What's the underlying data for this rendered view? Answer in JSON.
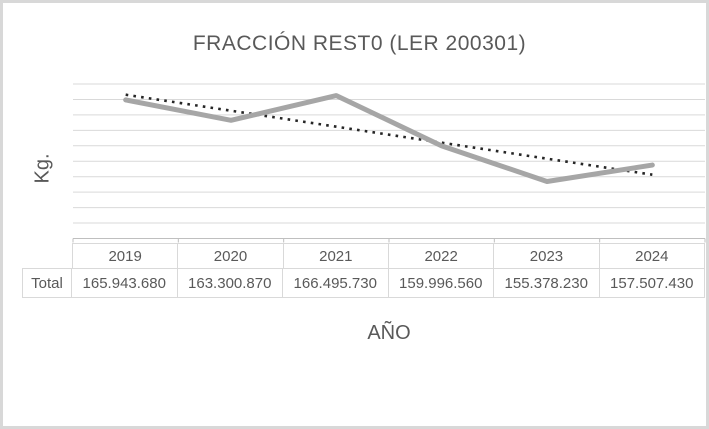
{
  "chart_data": {
    "type": "line",
    "title": "FRACCIÓN REST0 (LER 200301)",
    "xlabel": "AÑO",
    "ylabel": "Kg.",
    "categories": [
      "2019",
      "2020",
      "2021",
      "2022",
      "2023",
      "2024"
    ],
    "series": [
      {
        "name": "Total",
        "values": [
          165943680,
          163300870,
          166495730,
          159996560,
          155378230,
          157507430
        ],
        "color": "#a6a6a6"
      }
    ],
    "trendline": {
      "type": "linear",
      "style": "dotted",
      "color": "#262626"
    },
    "ylim": [
      148000000,
      168000000
    ],
    "gridline_step": 2000000,
    "grid": true,
    "axis_tick_labels_shown": false,
    "legend_position": "none",
    "grid_color": "#d9d9d9",
    "axis_color": "#bfbfbf"
  },
  "table": {
    "row_label": "Total",
    "headers": [
      "2019",
      "2020",
      "2021",
      "2022",
      "2023",
      "2024"
    ],
    "values": [
      "165.943.680",
      "163.300.870",
      "166.495.730",
      "159.996.560",
      "155.378.230",
      "157.507.430"
    ]
  }
}
